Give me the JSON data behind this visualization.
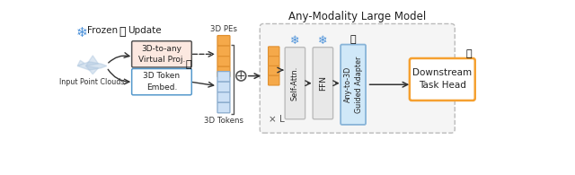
{
  "title": "Any-Modality Large Model",
  "legend_frozen": "Frozen",
  "legend_update": "Update",
  "input_label": "Input Point Clouds",
  "box1_label": "3D-to-any\nVirtual Proj.",
  "box2_label": "3D Token\nEmbed.",
  "pe_label": "3D PEs",
  "token_label": "3D Tokens",
  "self_attn_label": "Self-Attn.",
  "ffn_label": "FFN",
  "adapter_label": "Any-to-3D\nGuided Adapter",
  "downstream_label": "Downstream\nTask Head",
  "repeat_label": "× L",
  "bg_color": "#ffffff",
  "box1_fill": "#fce8e0",
  "box2_fill": "#ffffff",
  "pe_color": "#f5a94a",
  "pe_edge": "#e09030",
  "token_color": "#cce0f5",
  "token_edge": "#88aacc",
  "self_attn_fill": "#e8e8e8",
  "ffn_fill": "#e8e8e8",
  "adapter_fill": "#d0e8f8",
  "adapter_edge": "#88b4d8",
  "downstream_fill": "#ffffff",
  "downstream_border": "#f5a030",
  "llm_box_fill": "#f5f5f5",
  "llm_box_edge": "#bbbbbb",
  "snowflake_color": "#4a90d9",
  "arrow_color": "#333333",
  "box1_edge": "#555555",
  "box2_edge": "#5599cc"
}
